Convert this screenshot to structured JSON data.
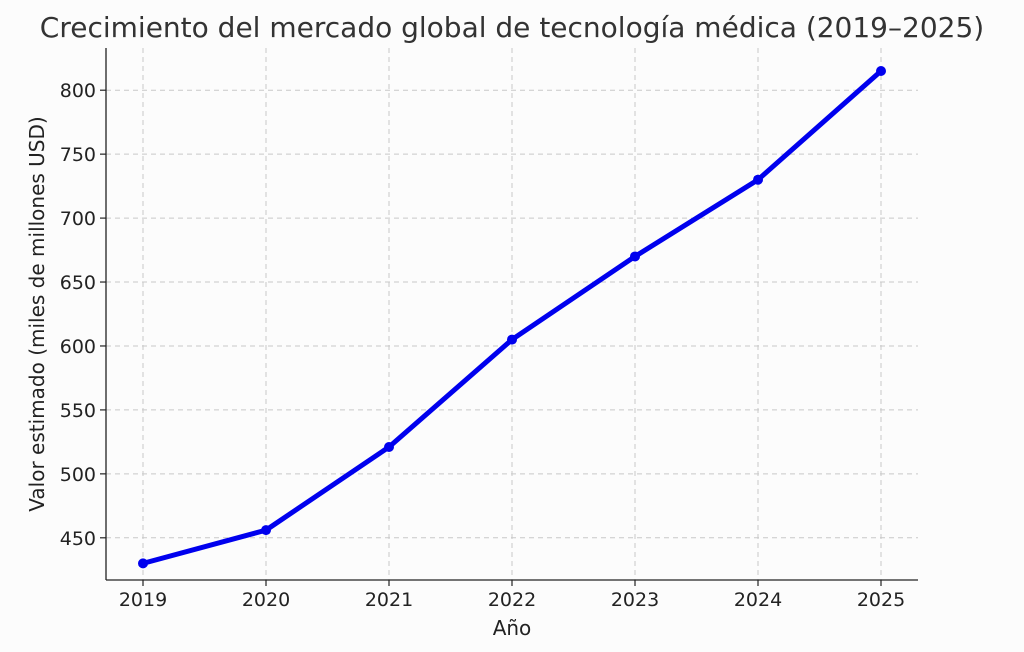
{
  "chart_data": {
    "type": "line",
    "title": "Crecimiento del mercado global de tecnología médica (2019–2025)",
    "xlabel": "Año",
    "ylabel": "Valor estimado (miles de millones USD)",
    "categories": [
      "2019",
      "2020",
      "2021",
      "2022",
      "2023",
      "2024",
      "2025"
    ],
    "series": [
      {
        "values": [
          430,
          456,
          521,
          605,
          670,
          730,
          815
        ]
      }
    ],
    "ylim": [
      417,
      833
    ],
    "yticks": [
      450,
      500,
      550,
      600,
      650,
      700,
      750,
      800
    ],
    "grid": true,
    "line_color": "#0000ee"
  }
}
